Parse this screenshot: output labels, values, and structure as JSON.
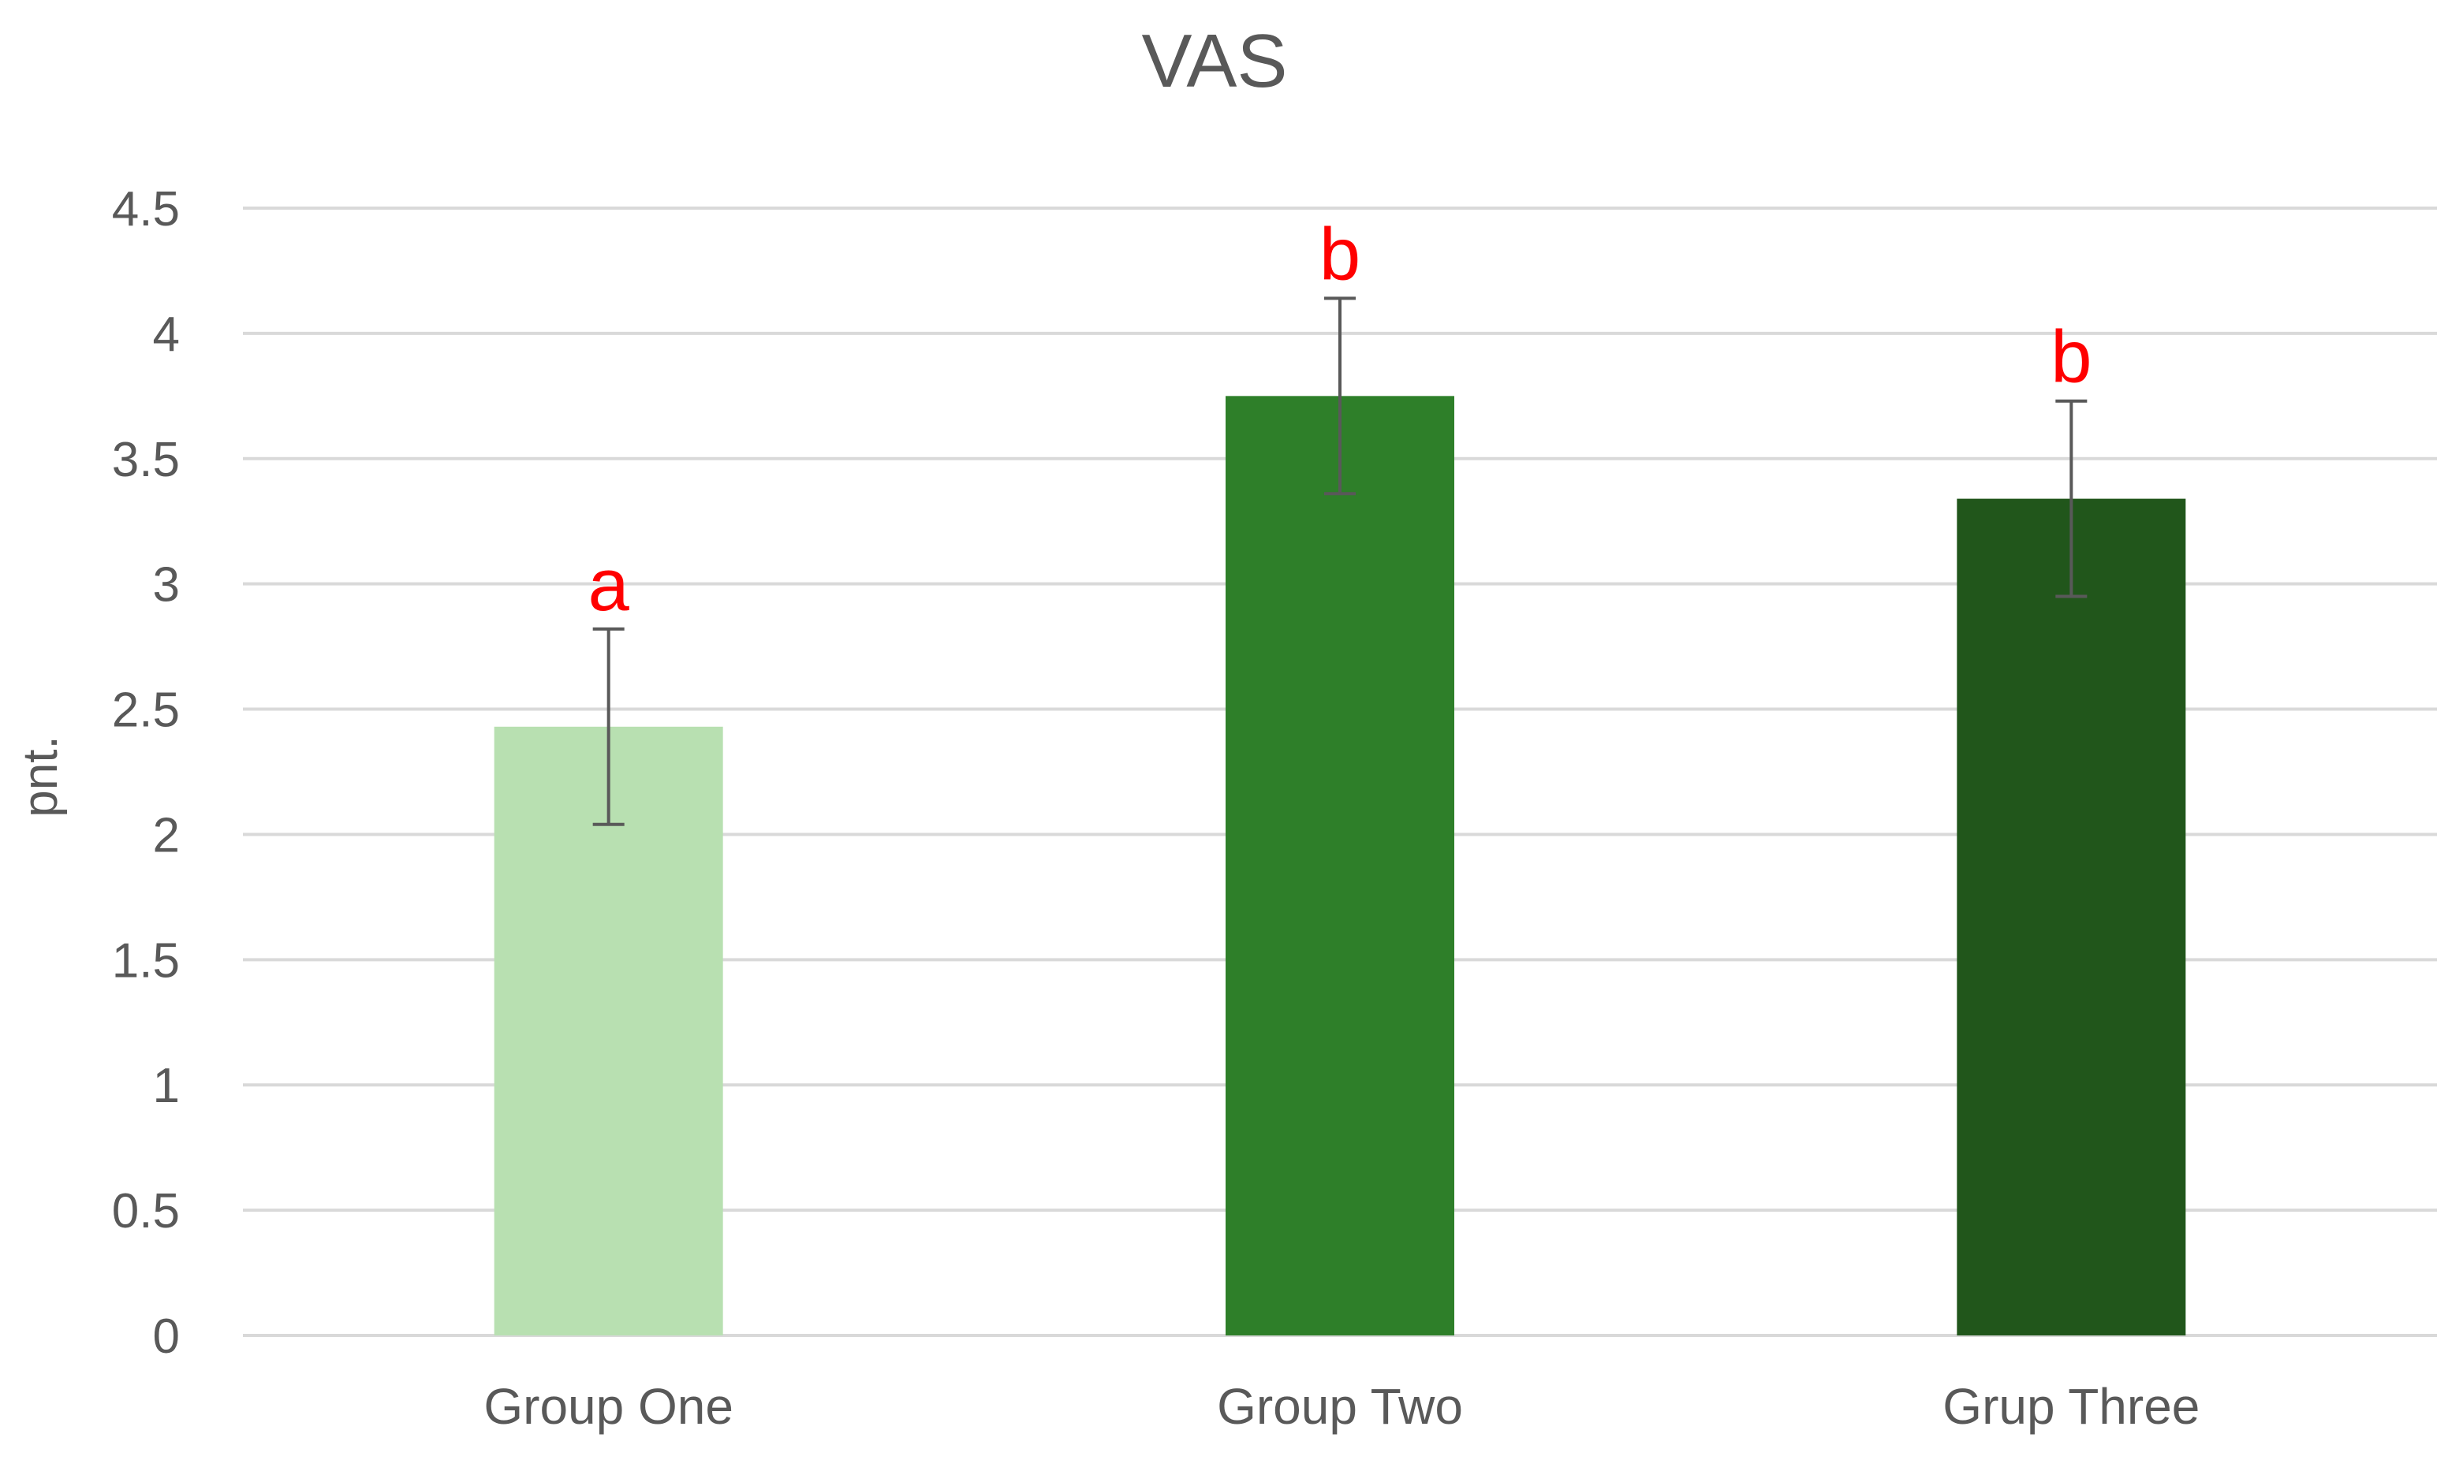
{
  "chart_data": {
    "type": "bar",
    "title": "VAS",
    "xlabel": "",
    "ylabel": "pnt.",
    "ylim": [
      0,
      4.5
    ],
    "ytick_step": 0.5,
    "ytick_labels": [
      "0",
      "0.5",
      "1",
      "1.5",
      "2",
      "2.5",
      "3",
      "3.5",
      "4",
      "4.5"
    ],
    "grid": true,
    "legend": "none",
    "categories": [
      "Group One",
      "Group Two",
      "Grup Three"
    ],
    "values": [
      2.43,
      3.75,
      3.34
    ],
    "error_bars": [
      0.39,
      0.39,
      0.39
    ],
    "significance_letters": [
      "a",
      "b",
      "b"
    ],
    "colors": [
      "#b8e0b1",
      "#2e7f29",
      "#21561b"
    ],
    "annotation_color": "#ff0000"
  }
}
